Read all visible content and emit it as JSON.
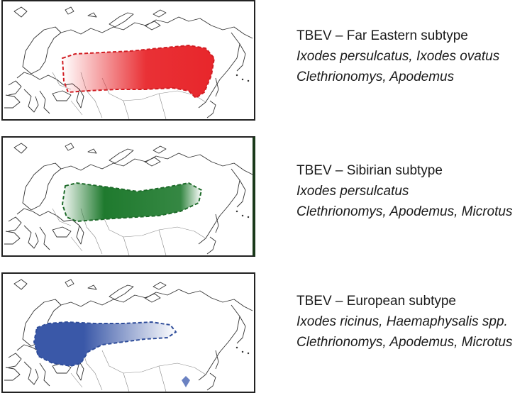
{
  "panels": [
    {
      "title": "TBEV – Far Eastern subtype",
      "vectors": "Ixodes persulcatus, Ixodes ovatus",
      "hosts": "Clethrionomys, Apodemus",
      "color": "#e8262b"
    },
    {
      "title": "TBEV – Sibirian subtype",
      "vectors": "Ixodes persulcatus",
      "hosts": "Clethrionomys, Apodemus, Microtus",
      "color": "#1f7a2e"
    },
    {
      "title": "TBEV – European subtype",
      "vectors": "Ixodes ricinus, Haemaphysalis spp.",
      "hosts": "Clethrionomys, Apodemus, Microtus",
      "color": "#3a58a8"
    }
  ]
}
